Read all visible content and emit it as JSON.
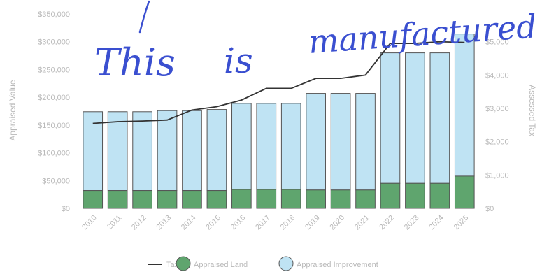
{
  "chart_data": {
    "type": "bar",
    "categories": [
      "2010",
      "2011",
      "2012",
      "2013",
      "2014",
      "2015",
      "2016",
      "2017",
      "2018",
      "2019",
      "2020",
      "2021",
      "2022",
      "2023",
      "2024",
      "2025"
    ],
    "series": [
      {
        "name": "Appraised Land",
        "values": [
          32000,
          32000,
          32000,
          32000,
          32000,
          32000,
          34000,
          34000,
          34000,
          33000,
          33000,
          33000,
          45000,
          45000,
          45000,
          58000
        ]
      },
      {
        "name": "Appraised Improvement",
        "values": [
          142000,
          142000,
          142000,
          144000,
          144000,
          146000,
          155000,
          155000,
          155000,
          174000,
          174000,
          174000,
          235000,
          235000,
          235000,
          256000
        ]
      }
    ],
    "line_series": {
      "name": "Tax",
      "values": [
        2550,
        2600,
        2620,
        2650,
        2950,
        3050,
        3250,
        3600,
        3600,
        3900,
        3900,
        4000,
        4950,
        4950,
        5000,
        4980
      ]
    },
    "ylabel": "Appraised Value",
    "y2label": "Assessed Tax",
    "ylim": [
      0,
      350000
    ],
    "y2lim": [
      0,
      5833
    ],
    "yticks": [
      "$0",
      "$50,000",
      "$100,000",
      "$150,000",
      "$200,000",
      "$250,000",
      "$300,000",
      "$350,000"
    ],
    "y2ticks": [
      "$0",
      "$1,000",
      "$2,000",
      "$3,000",
      "$4,000",
      "$5,000"
    ],
    "legend": {
      "position": "bottom",
      "items": [
        "Tax",
        "Appraised Land",
        "Appraised Improvement"
      ]
    },
    "colors": {
      "land": "#5fa56e",
      "improvement": "#bfe3f3",
      "outline": "#555555",
      "tax_line": "#333333"
    }
  },
  "annotation": {
    "line1": "This",
    "line2": "is",
    "line3": "manufactured",
    "color": "#3a4fd0"
  }
}
